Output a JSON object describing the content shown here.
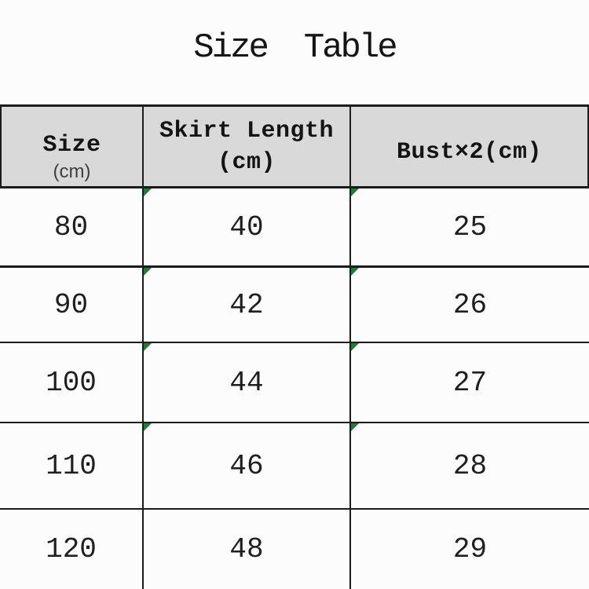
{
  "title": "Size  Table",
  "table": {
    "columns": [
      {
        "title": "Size",
        "unit": "(cm)"
      },
      {
        "title": "Skirt Length",
        "unit": "(cm)"
      },
      {
        "title": "Bust×2(cm)"
      }
    ],
    "rows": [
      {
        "size": "80",
        "skirt": "40",
        "bust": "25"
      },
      {
        "size": "90",
        "skirt": "42",
        "bust": "26"
      },
      {
        "size": "100",
        "skirt": "44",
        "bust": "27"
      },
      {
        "size": "110",
        "skirt": "46",
        "bust": "28"
      },
      {
        "size": "120",
        "skirt": "48",
        "bust": "29"
      }
    ]
  },
  "colors": {
    "header_background": "#d9d9d9",
    "grid_line": "#1b1b1b",
    "corner_marker_green": "#257a35",
    "page_background": "#fcfcfc"
  },
  "chart_data": {
    "type": "table",
    "title": "Size Table",
    "columns": [
      "Size (cm)",
      "Skirt Length (cm)",
      "Bust×2(cm)"
    ],
    "rows": [
      [
        80,
        40,
        25
      ],
      [
        90,
        42,
        26
      ],
      [
        100,
        44,
        27
      ],
      [
        110,
        46,
        28
      ],
      [
        120,
        48,
        29
      ]
    ]
  }
}
